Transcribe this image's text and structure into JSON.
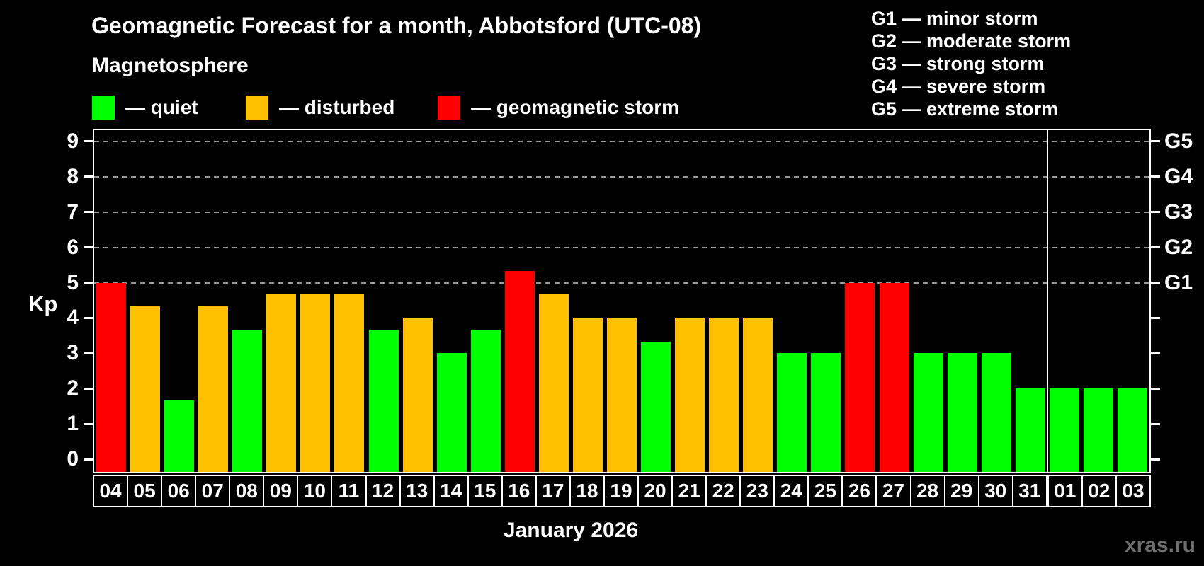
{
  "header": {
    "title": "Geomagnetic Forecast for a month, Abbotsford (UTC-08)",
    "subtitle": "Magnetosphere"
  },
  "legend": {
    "items": [
      {
        "name": "quiet",
        "label": "— quiet",
        "color": "#00ff00"
      },
      {
        "name": "disturbed",
        "label": "— disturbed",
        "color": "#ffc000"
      },
      {
        "name": "storm",
        "label": "— geomagnetic storm",
        "color": "#ff0000"
      }
    ]
  },
  "storm_scale": {
    "items": [
      "G1 — minor storm",
      "G2 — moderate storm",
      "G3 — strong storm",
      "G4 — severe storm",
      "G5 — extreme storm"
    ]
  },
  "watermark": "xras.ru",
  "chart_data": {
    "type": "bar",
    "title": "Geomagnetic Forecast for a month, Abbotsford (UTC-08)",
    "xlabel": "January 2026",
    "ylabel": "Kp",
    "ylim": [
      0,
      9
    ],
    "yticks": [
      0,
      1,
      2,
      3,
      4,
      5,
      6,
      7,
      8,
      9
    ],
    "gridlines_at": [
      5,
      6,
      7,
      8,
      9
    ],
    "grid": "dashed",
    "legend_position": "top",
    "right_axis_labels": [
      {
        "label": "G1",
        "kp": 5
      },
      {
        "label": "G2",
        "kp": 6
      },
      {
        "label": "G3",
        "kp": 7
      },
      {
        "label": "G4",
        "kp": 8
      },
      {
        "label": "G5",
        "kp": 9
      }
    ],
    "categories": [
      "04",
      "05",
      "06",
      "07",
      "08",
      "09",
      "10",
      "11",
      "12",
      "13",
      "14",
      "15",
      "16",
      "17",
      "18",
      "19",
      "20",
      "21",
      "22",
      "23",
      "24",
      "25",
      "26",
      "27",
      "28",
      "29",
      "30",
      "31",
      "01",
      "02",
      "03"
    ],
    "values": [
      5.0,
      4.33,
      1.67,
      4.33,
      3.67,
      4.67,
      4.67,
      4.67,
      3.67,
      4.0,
      3.0,
      3.67,
      5.33,
      4.67,
      4.0,
      4.0,
      3.33,
      4.0,
      4.0,
      4.0,
      3.0,
      3.0,
      5.0,
      5.0,
      3.0,
      3.0,
      3.0,
      2.0,
      2.0,
      2.0,
      2.0
    ],
    "levels": [
      "storm",
      "disturbed",
      "quiet",
      "disturbed",
      "quiet",
      "disturbed",
      "disturbed",
      "disturbed",
      "quiet",
      "disturbed",
      "quiet",
      "quiet",
      "storm",
      "disturbed",
      "disturbed",
      "disturbed",
      "quiet",
      "disturbed",
      "disturbed",
      "disturbed",
      "quiet",
      "quiet",
      "storm",
      "storm",
      "quiet",
      "quiet",
      "quiet",
      "quiet",
      "quiet",
      "quiet",
      "quiet"
    ],
    "level_colors": {
      "quiet": "#00ff00",
      "disturbed": "#ffc000",
      "storm": "#ff0000"
    },
    "january_days": 28,
    "february_days": 3
  }
}
